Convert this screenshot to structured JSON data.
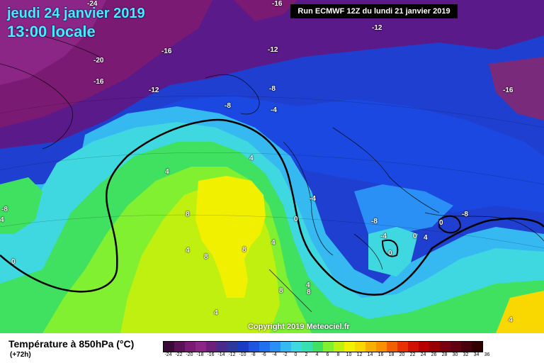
{
  "header": {
    "date": "jeudi 24 janvier 2019",
    "time": "13:00 locale",
    "run": "Run ECMWF 12Z du lundi 21 janvier 2019"
  },
  "copyright": "Copyright 2019 Meteociel.fr",
  "legend": {
    "title": "Température à 850hPa (°C)",
    "subtitle": "(+72h)",
    "ticks": [
      "-24",
      "-22",
      "-20",
      "-18",
      "-16",
      "-14",
      "-12",
      "-10",
      "-8",
      "-6",
      "-4",
      "-2",
      "0",
      "2",
      "4",
      "6",
      "8",
      "10",
      "12",
      "14",
      "16",
      "18",
      "20",
      "22",
      "24",
      "26",
      "28",
      "30",
      "32",
      "34",
      "36"
    ],
    "colors": [
      "#3a0a36",
      "#5a1156",
      "#7a1a73",
      "#8c2686",
      "#6e1f7a",
      "#4a2a8a",
      "#2c3a9c",
      "#1a3cc2",
      "#1e55e0",
      "#2070f0",
      "#2a90f5",
      "#36b8f0",
      "#40d8e0",
      "#38e0b0",
      "#40e060",
      "#80f030",
      "#c0f010",
      "#f0f000",
      "#f8d800",
      "#f8b000",
      "#f89000",
      "#f06000",
      "#e83000",
      "#d01000",
      "#b80000",
      "#980000",
      "#780010",
      "#600010",
      "#480010",
      "#300000"
    ]
  },
  "isotherm_labels": [
    {
      "text": "-16"
    },
    {
      "text": "-24"
    },
    {
      "text": "-12"
    },
    {
      "text": "-20"
    },
    {
      "text": "-16"
    },
    {
      "text": "-12"
    },
    {
      "text": "-16"
    },
    {
      "text": "-12"
    },
    {
      "text": "-8"
    },
    {
      "text": "-8"
    },
    {
      "text": "-4"
    },
    {
      "text": "-16"
    },
    {
      "text": "4"
    },
    {
      "text": "4"
    },
    {
      "text": "-8"
    },
    {
      "text": "4"
    },
    {
      "text": "8"
    },
    {
      "text": "0"
    },
    {
      "text": "0"
    },
    {
      "text": "4"
    },
    {
      "text": "8"
    },
    {
      "text": "8"
    },
    {
      "text": "4"
    },
    {
      "text": "-4"
    },
    {
      "text": "-8"
    },
    {
      "text": "-8"
    },
    {
      "text": "0"
    },
    {
      "text": "-4"
    },
    {
      "text": "0"
    },
    {
      "text": "4"
    },
    {
      "text": "8"
    },
    {
      "text": "4"
    },
    {
      "text": "8"
    },
    {
      "text": "4"
    },
    {
      "text": "0"
    },
    {
      "text": "4"
    }
  ]
}
